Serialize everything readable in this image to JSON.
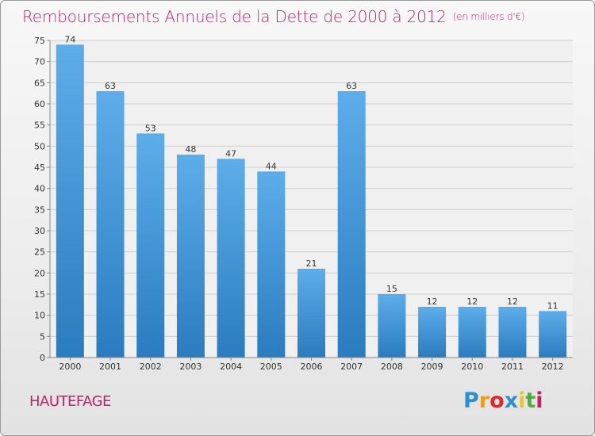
{
  "header": {
    "title": "Remboursements Annuels de la Dette de 2000 à 2012",
    "subtitle": "(en milliers d'€)"
  },
  "footer": {
    "commune": "HAUTEFAGE",
    "logo_text": "Proxiti",
    "logo_letters": [
      {
        "ch": "P",
        "color": "#2a8fd6"
      },
      {
        "ch": "r",
        "color": "#f29a1d"
      },
      {
        "ch": "o",
        "color": "#e2262b"
      },
      {
        "ch": "x",
        "color": "#2a8fd6"
      },
      {
        "ch": "i",
        "color": "#f2c21d"
      },
      {
        "ch": "t",
        "color": "#4caf3c"
      },
      {
        "ch": "i",
        "color": "#c21f68"
      }
    ]
  },
  "chart_data": {
    "type": "bar",
    "title": "Remboursements Annuels de la Dette de 2000 à 2012",
    "categories": [
      "2000",
      "2001",
      "2002",
      "2003",
      "2004",
      "2005",
      "2006",
      "2007",
      "2008",
      "2009",
      "2010",
      "2011",
      "2012"
    ],
    "values": [
      74,
      63,
      53,
      48,
      47,
      44,
      21,
      63,
      15,
      12,
      12,
      12,
      11
    ],
    "ylim": [
      0,
      75
    ],
    "yticks": [
      0,
      5,
      10,
      15,
      20,
      25,
      30,
      35,
      40,
      45,
      50,
      55,
      60,
      65,
      70,
      75
    ],
    "grid": true,
    "bar_color_top": "#5dadea",
    "bar_color_bottom": "#2a7cc0"
  }
}
